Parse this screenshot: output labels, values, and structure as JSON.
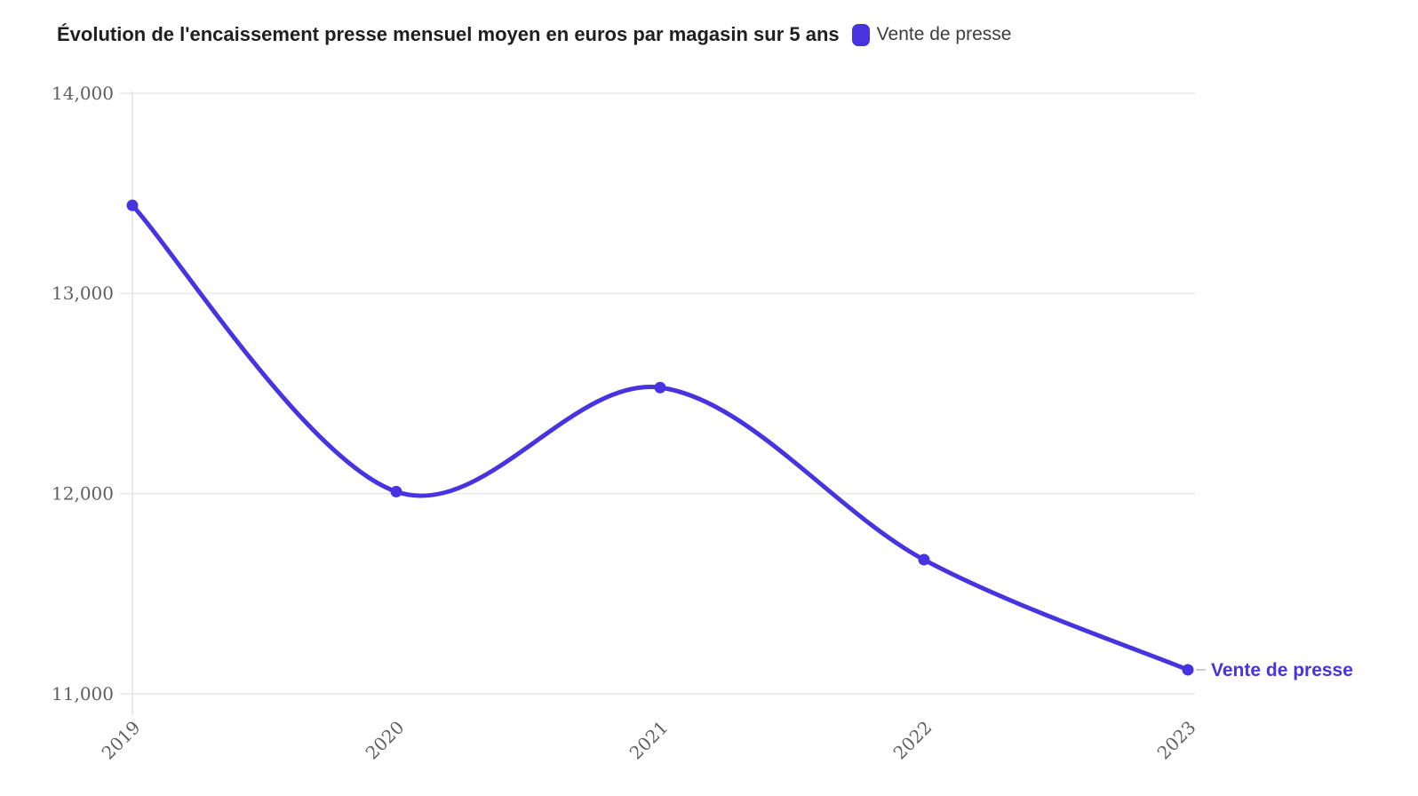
{
  "header": {
    "title": "Évolution de l'encaissement presse mensuel moyen en euros par magasin sur 5 ans",
    "legend": [
      {
        "label": "Vente de presse",
        "color": "#4733e0"
      }
    ]
  },
  "colors": {
    "accent": "#4733e0",
    "title_text": "#1f1f1f",
    "legend_text": "#3d3d3d",
    "tick_text": "#5f5f5f",
    "gridline": "#ececec",
    "axis_line": "#e4e4e4",
    "end_label_connector": "#c9c9d6",
    "background": "#ffffff"
  },
  "chart_data": {
    "type": "line",
    "title": "Évolution de l'encaissement presse mensuel moyen en euros par magasin sur 5 ans",
    "categories": [
      "2019",
      "2020",
      "2021",
      "2022",
      "2023"
    ],
    "series": [
      {
        "name": "Vente de presse",
        "color": "#4733e0",
        "values": [
          13440,
          12010,
          12530,
          11670,
          11120
        ],
        "end_label": "Vente de presse"
      }
    ],
    "xlabel": "",
    "ylabel": "",
    "ylim": [
      11000,
      14000
    ],
    "yticks": [
      {
        "value": 11000,
        "label": "11,000"
      },
      {
        "value": 12000,
        "label": "12,000"
      },
      {
        "value": 13000,
        "label": "13,000"
      },
      {
        "value": 14000,
        "label": "14,000"
      }
    ],
    "grid": "horizontal",
    "smooth": true,
    "marker": "circle",
    "legend_position": "top-right",
    "x_tick_rotation": 45
  }
}
